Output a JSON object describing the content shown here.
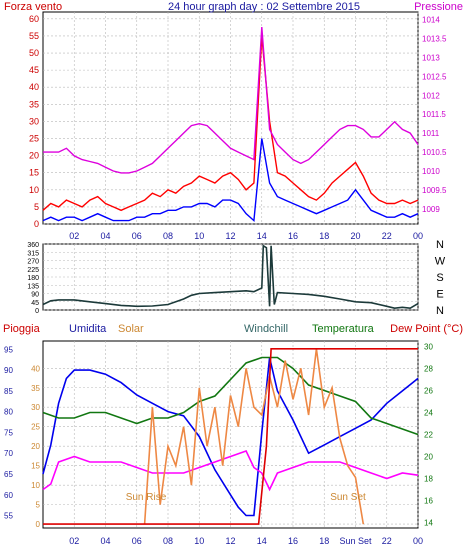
{
  "header": {
    "left_label": "Forza vento",
    "title": "24 hour graph day : 02 Settembre 2015",
    "right_label": "Pressione"
  },
  "x_ticks": [
    "02",
    "04",
    "06",
    "08",
    "10",
    "12",
    "14",
    "16",
    "18",
    "20",
    "22",
    "00"
  ],
  "x_ticks_bottom": [
    "02",
    "04",
    "06",
    "08",
    "10",
    "12",
    "14",
    "16",
    "18",
    "Sun Set",
    "22",
    "00"
  ],
  "chart_data": [
    {
      "type": "line",
      "title": "24 hour graph day : 02 Settembre 2015",
      "xlabel": "",
      "ylabel_left": "Forza vento",
      "ylabel_right": "Pressione",
      "x_range": [
        0,
        24
      ],
      "grid": true,
      "ylim_left": [
        0,
        62
      ],
      "yticks_left": [
        0,
        5,
        10,
        15,
        20,
        25,
        30,
        35,
        40,
        45,
        50,
        55,
        60
      ],
      "ylim_right": [
        1008.6,
        1014.2
      ],
      "yticks_right": [
        1009,
        1009.5,
        1010,
        1010.5,
        1011,
        1011.5,
        1012,
        1012.5,
        1013,
        1013.5,
        1014
      ],
      "series": [
        {
          "color": "#ff0000",
          "axis": "left",
          "x": [
            0,
            0.5,
            1,
            1.5,
            2,
            2.5,
            3,
            3.5,
            4,
            4.5,
            5,
            5.5,
            6,
            6.5,
            7,
            7.5,
            8,
            8.5,
            9,
            9.5,
            10,
            10.5,
            11,
            11.5,
            12,
            12.5,
            13,
            13.5,
            14,
            14.5,
            15,
            15.5,
            16,
            16.5,
            17,
            17.5,
            18,
            18.5,
            19,
            19.5,
            20,
            20.5,
            21,
            21.5,
            22,
            22.5,
            23,
            23.5,
            24
          ],
          "y": [
            4,
            6,
            5,
            7,
            6,
            5,
            7,
            8,
            6,
            5,
            4,
            5,
            6,
            7,
            9,
            8,
            10,
            9,
            11,
            12,
            14,
            13,
            12,
            14,
            15,
            13,
            10,
            12,
            55,
            30,
            15,
            14,
            12,
            10,
            8,
            7,
            9,
            12,
            14,
            16,
            18,
            14,
            9,
            7,
            6,
            6,
            7,
            6,
            7
          ]
        },
        {
          "color": "#0000ff",
          "axis": "left",
          "x": [
            0,
            0.5,
            1,
            1.5,
            2,
            2.5,
            3,
            3.5,
            4,
            4.5,
            5,
            5.5,
            6,
            6.5,
            7,
            7.5,
            8,
            8.5,
            9,
            9.5,
            10,
            10.5,
            11,
            11.5,
            12,
            12.5,
            13,
            13.5,
            14,
            14.5,
            15,
            15.5,
            16,
            16.5,
            17,
            17.5,
            18,
            18.5,
            19,
            19.5,
            20,
            20.5,
            21,
            21.5,
            22,
            22.5,
            23,
            23.5,
            24
          ],
          "y": [
            1,
            2,
            1,
            2,
            2,
            1,
            2,
            3,
            2,
            1,
            1,
            1,
            2,
            2,
            3,
            3,
            4,
            4,
            5,
            5,
            6,
            6,
            5,
            7,
            7,
            6,
            3,
            1,
            25,
            12,
            8,
            7,
            6,
            5,
            4,
            3,
            4,
            5,
            6,
            7,
            10,
            7,
            4,
            3,
            2,
            2,
            3,
            2,
            3
          ]
        },
        {
          "color": "#dd00dd",
          "axis": "right",
          "x": [
            0,
            0.5,
            1,
            1.5,
            2,
            2.5,
            3,
            3.5,
            4,
            4.5,
            5,
            5.5,
            6,
            6.5,
            7,
            7.5,
            8,
            8.5,
            9,
            9.5,
            10,
            10.5,
            11,
            11.5,
            12,
            12.5,
            13,
            13.5,
            14,
            14.5,
            15,
            15.5,
            16,
            16.5,
            17,
            17.5,
            18,
            18.5,
            19,
            19.5,
            20,
            20.5,
            21,
            21.5,
            22,
            22.5,
            23,
            23.5,
            24
          ],
          "y": [
            1010.5,
            1010.5,
            1010.5,
            1010.6,
            1010.4,
            1010.3,
            1010.25,
            1010.2,
            1010.1,
            1010,
            1009.95,
            1009.95,
            1010,
            1010.1,
            1010.2,
            1010.4,
            1010.6,
            1010.8,
            1011,
            1011.2,
            1011.25,
            1011.2,
            1011,
            1010.8,
            1010.6,
            1010.5,
            1010.4,
            1010.3,
            1013.8,
            1011.1,
            1010.7,
            1010.5,
            1010.3,
            1010.2,
            1010.3,
            1010.5,
            1010.7,
            1010.9,
            1011.1,
            1011.2,
            1011.2,
            1011.1,
            1010.9,
            1010.9,
            1011.1,
            1011.3,
            1011.1,
            1011,
            1010.7
          ]
        }
      ]
    },
    {
      "type": "line",
      "ylim": [
        0,
        360
      ],
      "yticks": [
        0,
        45,
        90,
        135,
        180,
        225,
        270,
        315,
        360
      ],
      "right_labels": [
        "N",
        "W",
        "S",
        "E",
        "N"
      ],
      "grid": true,
      "series": [
        {
          "color": "#1c3a3a",
          "x": [
            0,
            0.5,
            1,
            2,
            3,
            4,
            5,
            6,
            7,
            8,
            9,
            9.5,
            10,
            11,
            12,
            13,
            13.5,
            14,
            14.1,
            14.3,
            14.5,
            14.6,
            14.8,
            15,
            16,
            17,
            18,
            19,
            20,
            21,
            22,
            22.5,
            23,
            23.5,
            24
          ],
          "y": [
            30,
            50,
            55,
            55,
            45,
            35,
            25,
            20,
            22,
            30,
            60,
            80,
            90,
            95,
            100,
            105,
            100,
            120,
            350,
            340,
            20,
            350,
            30,
            95,
            90,
            85,
            75,
            60,
            45,
            40,
            20,
            10,
            15,
            10,
            35
          ]
        }
      ]
    },
    {
      "type": "line",
      "ylabels_top": [
        "Pioggia",
        "Umidita",
        "Solar",
        "Windchill",
        "Temperatura",
        "Dew Point (°C)"
      ],
      "left_axis_humidity": {
        "ylim": [
          52,
          97
        ],
        "yticks": [
          55,
          60,
          65,
          70,
          75,
          80,
          85,
          90,
          95
        ]
      },
      "left_axis_inner": {
        "ylim": [
          -1,
          47
        ],
        "yticks": [
          0,
          5,
          10,
          15,
          20,
          25,
          30,
          35,
          40
        ]
      },
      "right_axis": {
        "ylim": [
          13.5,
          30.5
        ],
        "yticks": [
          14,
          16,
          18,
          20,
          22,
          24,
          26,
          28,
          30
        ]
      },
      "annotations": [
        "Sun Rise",
        "Sun Set"
      ],
      "series": [
        {
          "color": "#0000ee",
          "axis": "humidity",
          "x": [
            0,
            0.5,
            1,
            1.5,
            2,
            3,
            4,
            5,
            6,
            7,
            8,
            9,
            10,
            11,
            12,
            12.5,
            13,
            13.5,
            14,
            14.5,
            15,
            16,
            17,
            18,
            19,
            20,
            21,
            22,
            23,
            24
          ],
          "y": [
            65,
            72,
            82,
            88,
            90,
            90,
            89,
            87,
            84,
            82,
            80,
            79,
            74,
            66,
            60,
            57,
            55,
            55,
            75,
            93,
            85,
            78,
            70,
            72,
            74,
            76,
            78,
            82,
            85,
            88
          ]
        },
        {
          "color": "#117711",
          "axis": "right",
          "x": [
            0,
            1,
            2,
            3,
            4,
            5,
            6,
            7,
            8,
            9,
            10,
            11,
            12,
            13,
            14,
            15,
            16,
            17,
            18,
            19,
            20,
            21,
            22,
            23,
            24
          ],
          "y": [
            24,
            23.5,
            23.5,
            24,
            24,
            23.5,
            23,
            23.5,
            23.5,
            24,
            25,
            25.5,
            27,
            28.5,
            29,
            29,
            28,
            26.5,
            26,
            25.5,
            25,
            23.5,
            23,
            22.5,
            22
          ]
        },
        {
          "color": "#ff00ff",
          "axis": "right",
          "x": [
            0,
            0.5,
            1,
            2,
            3,
            4,
            5,
            6,
            7,
            8,
            9,
            10,
            11,
            12,
            13,
            13.5,
            14,
            14.5,
            15,
            16,
            17,
            18,
            19,
            20,
            21,
            22,
            23,
            24
          ],
          "y": [
            17,
            17.5,
            19.5,
            20,
            19.5,
            19.5,
            19.5,
            19,
            18.5,
            18.5,
            18.5,
            19,
            19.5,
            20,
            20.5,
            19,
            18.5,
            17,
            18.5,
            19,
            19.5,
            19.5,
            19.5,
            19,
            18.5,
            18,
            18.5,
            18.3
          ]
        },
        {
          "color": "#ee8844",
          "axis": "inner",
          "x": [
            6.5,
            7,
            7.5,
            8,
            8.5,
            9,
            9.5,
            10,
            10.5,
            11,
            11.5,
            12,
            12.5,
            13,
            13.5,
            14,
            14.5,
            15,
            15.5,
            16,
            16.5,
            17,
            17.5,
            18,
            18.5,
            19,
            19.5,
            20,
            20.5
          ],
          "y": [
            0,
            30,
            5,
            20,
            15,
            25,
            10,
            35,
            20,
            30,
            15,
            33,
            25,
            40,
            30,
            28,
            38,
            30,
            42,
            32,
            40,
            28,
            45,
            30,
            35,
            22,
            15,
            12,
            0
          ]
        },
        {
          "color": "#dd0000",
          "axis": "inner",
          "x": [
            0,
            13.8,
            14.3,
            14.6,
            24
          ],
          "y": [
            0,
            0,
            20,
            45,
            45
          ]
        }
      ]
    }
  ]
}
